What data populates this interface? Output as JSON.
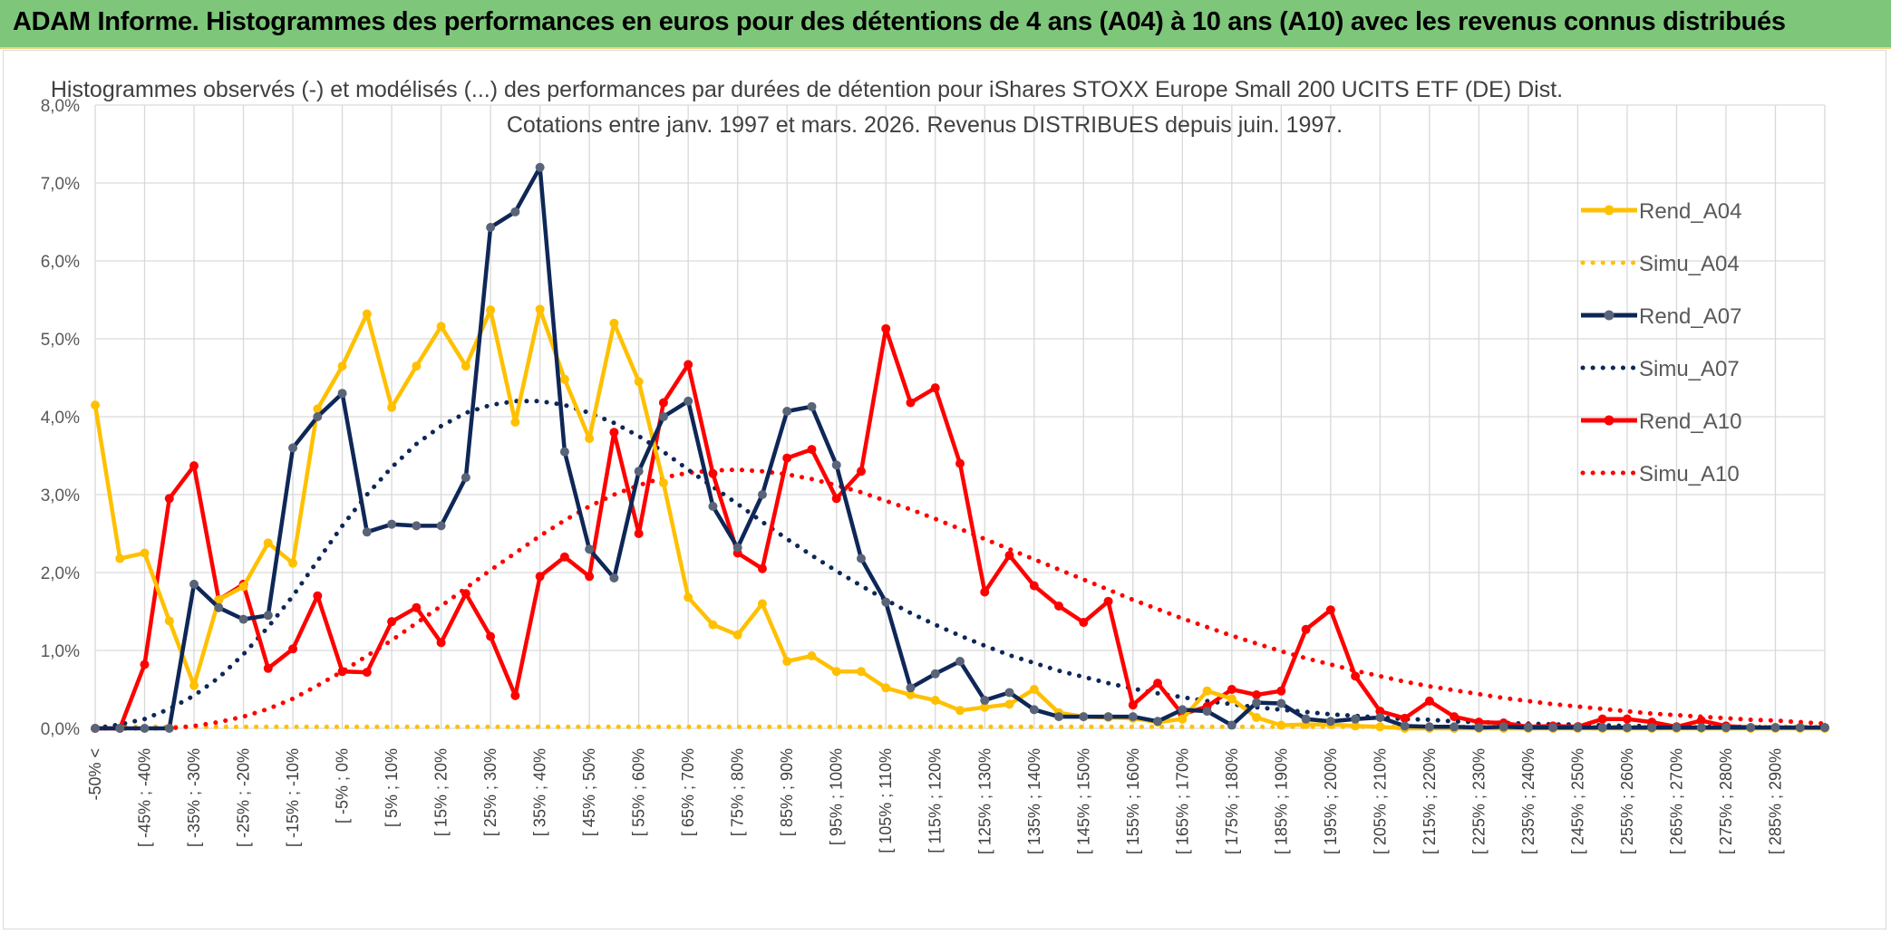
{
  "header": {
    "title": "ADAM Informe. Histogrammes des performances en euros pour des détentions de 4 ans (A04) à 10 ans (A10) avec les revenus connus distribués"
  },
  "colors": {
    "header_bg": "#7dc67a",
    "A04": "#ffc000",
    "A07": "#0e2757",
    "A07_marker": "#5a6478",
    "A10": "#ff0000"
  },
  "chart_data": {
    "type": "line",
    "title_line1": "Histogrammes observés (-) et modélisés (...) des performances par durées de détention pour iShares STOXX Europe Small 200 UCITS ETF (DE) Dist.",
    "title_line2": "Cotations entre janv. 1997 et mars. 2026. Revenus DISTRIBUES depuis juin. 1997.",
    "ylim": [
      0,
      8
    ],
    "y_ticks": [
      "0,0%",
      "1,0%",
      "2,0%",
      "3,0%",
      "4,0%",
      "5,0%",
      "6,0%",
      "7,0%",
      "8,0%"
    ],
    "x_tick_labels": [
      "-50% <",
      "[ -45% ; -40%",
      "[ -35% ; -30%",
      "[ -25% ; -20%",
      "[ -15% ; -10%",
      "[ -5% ; 0%",
      "[ 5% ; 10%",
      "[ 15% ; 20%",
      "[ 25% ; 30%",
      "[ 35% ; 40%",
      "[ 45% ; 50%",
      "[ 55% ; 60%",
      "[ 65% ; 70%",
      "[ 75% ; 80%",
      "[ 85% ; 90%",
      "[ 95% ; 100%",
      "[ 105% ; 110%",
      "[ 115% ; 120%",
      "[ 125% ; 130%",
      "[ 135% ; 140%",
      "[ 145% ; 150%",
      "[ 155% ; 160%",
      "[ 165% ; 170%",
      "[ 175% ; 180%",
      "[ 185% ; 190%",
      "[ 195% ; 200%",
      "[ 205% ; 210%",
      "[ 215% ; 220%",
      "[ 225% ; 230%",
      "[ 235% ; 240%",
      "[ 245% ; 250%",
      "[ 255% ; 260%",
      "[ 265% ; 270%",
      "[ 275% ; 280%",
      "[ 285% ; 290%"
    ],
    "n_bins": 71,
    "grid": true,
    "legend_position": "right",
    "series": [
      {
        "name": "Rend_A04",
        "style": "solid",
        "color": "#ffc000",
        "values": [
          4.15,
          2.18,
          2.25,
          1.38,
          0.55,
          1.65,
          1.82,
          2.38,
          2.12,
          4.1,
          4.65,
          5.32,
          4.12,
          4.65,
          5.16,
          4.65,
          5.37,
          3.93,
          5.38,
          4.48,
          3.72,
          5.2,
          4.45,
          3.15,
          1.68,
          1.33,
          1.2,
          1.6,
          0.86,
          0.93,
          0.73,
          0.73,
          0.52,
          0.43,
          0.36,
          0.23,
          0.27,
          0.31,
          0.5,
          0.2,
          0.15,
          0.14,
          0.13,
          0.08,
          0.12,
          0.48,
          0.38,
          0.14,
          0.04,
          0.05,
          0.05,
          0.03,
          0.02,
          0,
          0,
          0,
          0,
          0,
          0,
          0,
          0,
          0,
          0,
          0,
          0,
          0,
          0,
          0,
          0,
          0,
          0
        ]
      },
      {
        "name": "Simu_A04",
        "style": "dotted",
        "color": "#ffc000",
        "values": [
          0.02,
          0.02,
          0.02,
          0.02,
          0.02,
          0.02,
          0.02,
          0.02,
          0.02,
          0.02,
          0.02,
          0.02,
          0.02,
          0.02,
          0.02,
          0.02,
          0.02,
          0.02,
          0.02,
          0.02,
          0.02,
          0.02,
          0.02,
          0.02,
          0.02,
          0.02,
          0.02,
          0.02,
          0.02,
          0.02,
          0.02,
          0.02,
          0.02,
          0.02,
          0.02,
          0.02,
          0.02,
          0.02,
          0.02,
          0.02,
          0.02,
          0.02,
          0.02,
          0.02,
          0.02,
          0.02,
          0.02,
          0.02,
          0.02,
          0.02,
          0.02,
          0.02,
          0.02,
          0.02,
          0.02,
          0.02,
          0.02,
          0.02,
          0.02,
          0.02,
          0.02,
          0.02,
          0.02,
          0.02,
          0.02,
          0.02,
          0.02,
          0.02,
          0.02,
          0.02,
          0.02
        ]
      },
      {
        "name": "Rend_A07",
        "style": "solid",
        "color": "#0e2757",
        "values": [
          0,
          0,
          0,
          0,
          1.85,
          1.55,
          1.4,
          1.45,
          3.6,
          4,
          4.3,
          2.52,
          2.62,
          2.6,
          2.6,
          3.22,
          6.43,
          6.63,
          7.2,
          3.55,
          2.3,
          1.93,
          3.3,
          4,
          4.2,
          2.85,
          2.32,
          3,
          4.07,
          4.13,
          3.38,
          2.18,
          1.62,
          0.52,
          0.7,
          0.86,
          0.36,
          0.46,
          0.24,
          0.15,
          0.15,
          0.15,
          0.15,
          0.09,
          0.24,
          0.22,
          0.04,
          0.33,
          0.32,
          0.12,
          0.09,
          0.12,
          0.14,
          0.03,
          0.02,
          0.02,
          0.01,
          0.02,
          0.01,
          0.01,
          0.01,
          0.01,
          0.01,
          0.01,
          0.01,
          0.01,
          0.01,
          0.01,
          0.01,
          0.01,
          0.01
        ]
      },
      {
        "name": "Simu_A07",
        "style": "dotted",
        "color": "#0e2757",
        "values": [
          0,
          0.05,
          0.12,
          0.25,
          0.42,
          0.65,
          0.95,
          1.3,
          1.7,
          2.15,
          2.6,
          3.0,
          3.35,
          3.65,
          3.88,
          4.05,
          4.15,
          4.2,
          4.2,
          4.15,
          4.05,
          3.92,
          3.75,
          3.55,
          3.32,
          3.1,
          2.88,
          2.65,
          2.43,
          2.22,
          2.02,
          1.83,
          1.65,
          1.48,
          1.33,
          1.19,
          1.06,
          0.94,
          0.84,
          0.74,
          0.66,
          0.58,
          0.51,
          0.45,
          0.4,
          0.35,
          0.31,
          0.27,
          0.24,
          0.21,
          0.18,
          0.16,
          0.14,
          0.12,
          0.11,
          0.09,
          0.08,
          0.07,
          0.06,
          0.05,
          0.05,
          0.04,
          0.03,
          0.03,
          0.03,
          0.02,
          0.02,
          0.02,
          0.01,
          0.01,
          0.01
        ]
      },
      {
        "name": "Rend_A10",
        "style": "solid",
        "color": "#ff0000",
        "values": [
          0,
          0,
          0.82,
          2.95,
          3.37,
          1.65,
          1.85,
          0.77,
          1.02,
          1.7,
          0.73,
          0.72,
          1.37,
          1.55,
          1.1,
          1.73,
          1.18,
          0.42,
          1.95,
          2.2,
          1.95,
          3.8,
          2.5,
          4.18,
          4.67,
          3.27,
          2.25,
          2.05,
          3.47,
          3.58,
          2.95,
          3.3,
          5.13,
          4.18,
          4.37,
          3.4,
          1.75,
          2.22,
          1.83,
          1.57,
          1.36,
          1.63,
          0.3,
          0.58,
          0.18,
          0.28,
          0.5,
          0.43,
          0.48,
          1.27,
          1.52,
          0.67,
          0.22,
          0.13,
          0.35,
          0.15,
          0.08,
          0.07,
          0.02,
          0.03,
          0.02,
          0.12,
          0.12,
          0.08,
          0.02,
          0.1,
          0.03,
          0.01,
          0.01,
          0.01,
          0.01
        ]
      },
      {
        "name": "Simu_A10",
        "style": "dotted",
        "color": "#ff0000",
        "values": [
          0,
          0,
          0,
          0,
          0.03,
          0.08,
          0.15,
          0.25,
          0.38,
          0.55,
          0.73,
          0.93,
          1.13,
          1.35,
          1.57,
          1.8,
          2.03,
          2.25,
          2.47,
          2.67,
          2.85,
          3.0,
          3.12,
          3.22,
          3.28,
          3.31,
          3.32,
          3.3,
          3.26,
          3.2,
          3.12,
          3.03,
          2.92,
          2.81,
          2.69,
          2.56,
          2.43,
          2.3,
          2.17,
          2.04,
          1.91,
          1.78,
          1.65,
          1.53,
          1.41,
          1.3,
          1.19,
          1.09,
          0.99,
          0.9,
          0.82,
          0.74,
          0.67,
          0.6,
          0.54,
          0.49,
          0.44,
          0.39,
          0.35,
          0.31,
          0.28,
          0.25,
          0.22,
          0.19,
          0.17,
          0.15,
          0.13,
          0.11,
          0.1,
          0.08,
          0.06
        ]
      }
    ]
  }
}
